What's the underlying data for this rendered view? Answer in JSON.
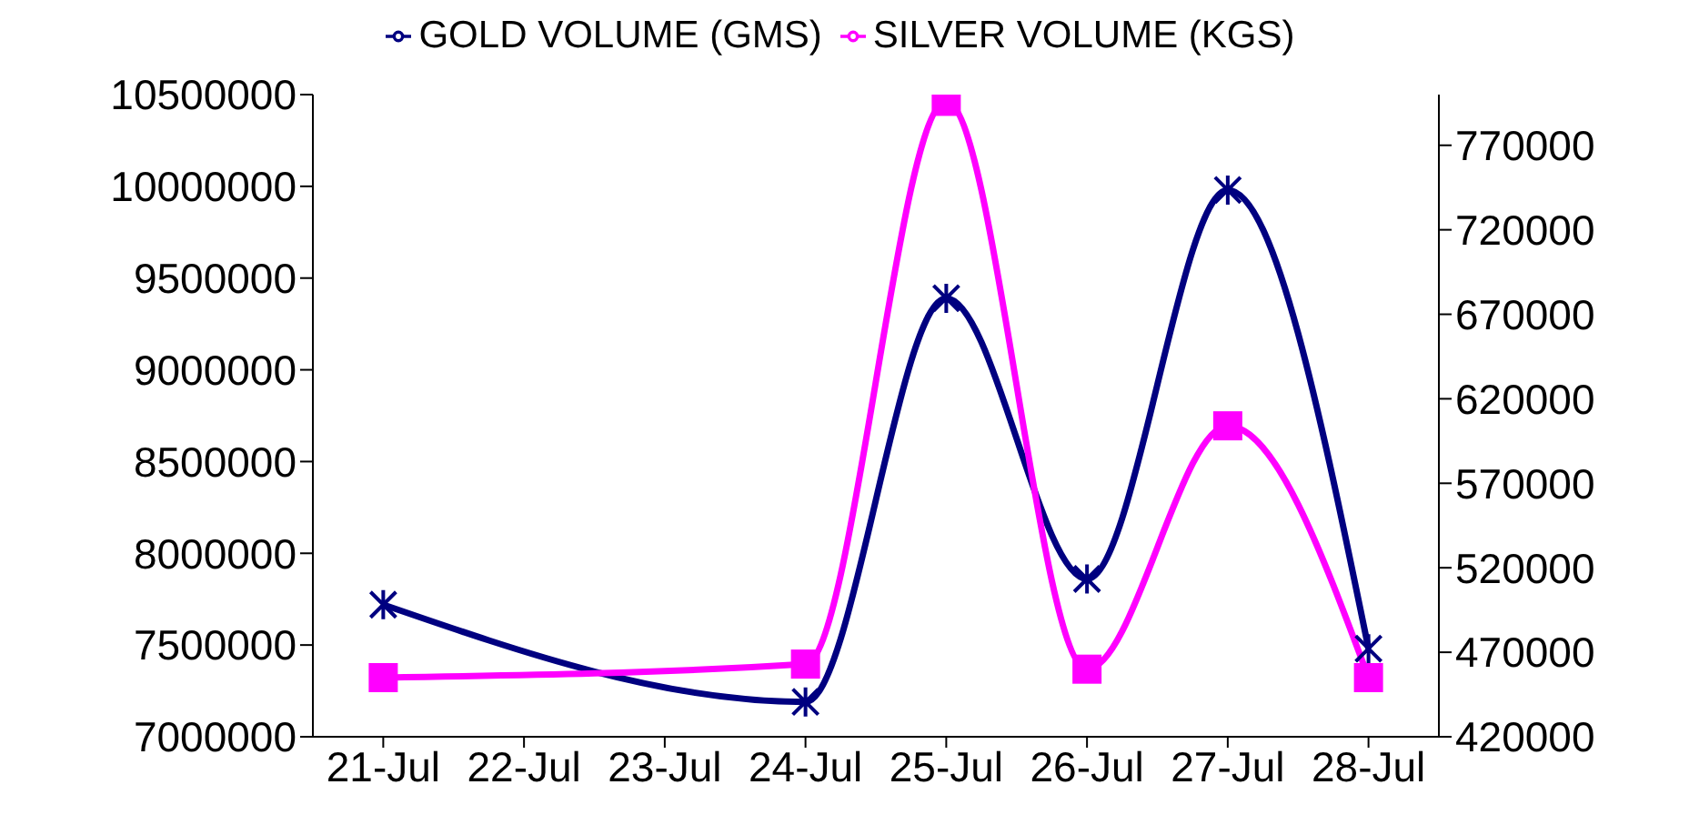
{
  "chart_data": {
    "type": "line",
    "x": [
      "--07-21",
      "--07-24",
      "--07-25",
      "--07-26",
      "--07-27",
      "--07-28"
    ],
    "xlim": [
      "--07-20T12:00",
      "--07-28T12:00"
    ],
    "xticks": [
      {
        "value": "--07-21",
        "label": "21-Jul"
      },
      {
        "value": "--07-22",
        "label": "22-Jul"
      },
      {
        "value": "--07-23",
        "label": "23-Jul"
      },
      {
        "value": "--07-24",
        "label": "24-Jul"
      },
      {
        "value": "--07-25",
        "label": "25-Jul"
      },
      {
        "value": "--07-26",
        "label": "26-Jul"
      },
      {
        "value": "--07-27",
        "label": "27-Jul"
      },
      {
        "value": "--07-28",
        "label": "28-Jul"
      }
    ],
    "series": [
      {
        "name": "GOLD VOLUME (GMS)",
        "color": "#000080",
        "marker": "cross",
        "values": [
          7720000,
          7190000,
          9390000,
          7860000,
          9980000,
          7480000
        ]
      },
      {
        "name": "SILVER VOLUME (KGS)",
        "color": "#ff00ff",
        "marker": "square",
        "axis": "y2",
        "values": [
          455000,
          463000,
          796000,
          460000,
          604000,
          455000
        ]
      }
    ],
    "ylim": [
      7000000,
      10500000
    ],
    "yticks": [
      7000000,
      7500000,
      8000000,
      8500000,
      9000000,
      9500000,
      10000000,
      10500000
    ],
    "y2lim": [
      420000,
      800000
    ],
    "y2ticks": [
      420000,
      470000,
      520000,
      570000,
      620000,
      670000,
      720000,
      770000
    ],
    "legend": "top",
    "grid": false,
    "line_style": "solid"
  }
}
